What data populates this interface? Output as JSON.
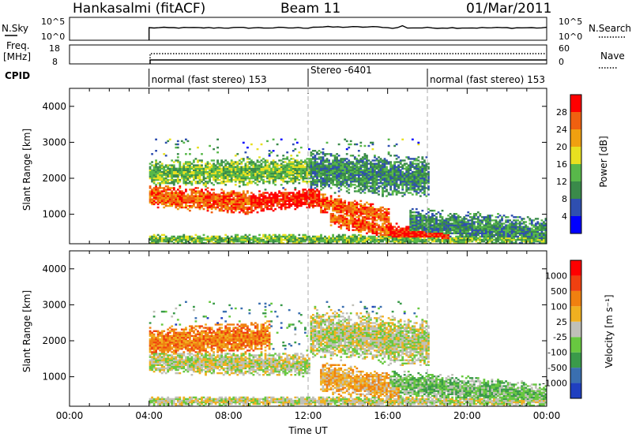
{
  "header": {
    "station": "Hankasalmi (fitACF)",
    "beam": "Beam 11",
    "date": "01/Mar/2011"
  },
  "strip_panels": {
    "nsky_label": "N.Sky",
    "nsearch_label": "N.Search",
    "nsky_ticks": [
      "10^5",
      "10^0"
    ],
    "nsearch_ticks": [
      "10^5",
      "10^0"
    ],
    "freq_label": "Freq.",
    "freq_unit": "[MHz]",
    "freq_ticks": [
      "18",
      "8"
    ],
    "nave_label": "Nave",
    "nave_ticks": [
      "60",
      "0"
    ],
    "cpid_label": "CPID",
    "cpid_segments": [
      {
        "start_hour": 4,
        "end_hour": 12,
        "label": "normal (fast stereo) 153"
      },
      {
        "start_hour": 12,
        "end_hour": 18,
        "label": "Stereo -6401"
      },
      {
        "start_hour": 18,
        "end_hour": 24,
        "label": "normal (fast stereo) 153"
      }
    ]
  },
  "chart_data": [
    {
      "type": "heatmap",
      "name": "power",
      "ylabel": "Slant Range [km]",
      "xlabel": "Time UT",
      "xlim": [
        0,
        24
      ],
      "ylim": [
        180,
        4500
      ],
      "yticks": [
        "1000",
        "2000",
        "3000",
        "4000"
      ],
      "colorbar": {
        "label": "Power [dB]",
        "ticks": [
          "4",
          "8",
          "12",
          "16",
          "20",
          "24",
          "28"
        ],
        "colors": [
          "#0000ff",
          "#2f4fb0",
          "#3a8a4a",
          "#58b84a",
          "#e8e020",
          "#f0a010",
          "#f06010",
          "#ff0000"
        ]
      },
      "data_start_hour": 4,
      "bands": [
        {
          "start_hour": 4.0,
          "end_hour": 9.0,
          "range_start": 1500,
          "range_end": 1300,
          "width": 350,
          "level": 6
        },
        {
          "start_hour": 9.0,
          "end_hour": 12.5,
          "range_start": 1300,
          "range_end": 1450,
          "width": 300,
          "level": 7
        },
        {
          "start_hour": 12.5,
          "end_hour": 16.0,
          "range_start": 1300,
          "range_end": 900,
          "width": 300,
          "level": 6
        },
        {
          "start_hour": 13.0,
          "end_hour": 16.0,
          "range_start": 900,
          "range_end": 500,
          "width": 250,
          "level": 6
        },
        {
          "start_hour": 16.0,
          "end_hour": 19.0,
          "range_start": 500,
          "range_end": 350,
          "width": 250,
          "level": 7
        },
        {
          "start_hour": 4.0,
          "end_hour": 12.0,
          "range_start": 2100,
          "range_end": 2200,
          "width": 400,
          "level": 3
        },
        {
          "start_hour": 12.0,
          "end_hour": 18.0,
          "range_start": 2200,
          "range_end": 2000,
          "width": 600,
          "level": 2
        },
        {
          "start_hour": 17.0,
          "end_hour": 24.0,
          "range_start": 700,
          "range_end": 400,
          "width": 500,
          "level": 2
        },
        {
          "start_hour": 4.0,
          "end_hour": 24.0,
          "range_start": 280,
          "range_end": 280,
          "width": 150,
          "level": 3
        }
      ]
    },
    {
      "type": "heatmap",
      "name": "velocity",
      "ylabel": "Slant Range [km]",
      "xlabel": "Time UT",
      "xlim": [
        0,
        24
      ],
      "ylim": [
        180,
        4500
      ],
      "yticks": [
        "1000",
        "2000",
        "3000",
        "4000"
      ],
      "xticks": [
        "00:00",
        "04:00",
        "08:00",
        "12:00",
        "16:00",
        "20:00",
        "00:00"
      ],
      "colorbar": {
        "label": "Velocity [m s⁻¹]",
        "ticks": [
          "1000",
          "500",
          "100",
          "25",
          "-25",
          "-100",
          "-500",
          "-1000"
        ],
        "colors": [
          "#2040c0",
          "#3a6fb0",
          "#3a9a4a",
          "#68c840",
          "#c0c0b8",
          "#f0b020",
          "#f08010",
          "#f04010",
          "#ff0000"
        ]
      },
      "bands": [
        {
          "start_hour": 4.0,
          "end_hour": 12.0,
          "range_start": 1400,
          "range_end": 1300,
          "width": 350,
          "level": 4
        },
        {
          "start_hour": 4.0,
          "end_hour": 10.0,
          "range_start": 1900,
          "range_end": 2100,
          "width": 450,
          "level": 6
        },
        {
          "start_hour": 12.0,
          "end_hour": 18.0,
          "range_start": 2200,
          "range_end": 1900,
          "width": 700,
          "level": 4
        },
        {
          "start_hour": 12.5,
          "end_hour": 16.5,
          "range_start": 1000,
          "range_end": 600,
          "width": 450,
          "level": 5
        },
        {
          "start_hour": 16.0,
          "end_hour": 24.0,
          "range_start": 800,
          "range_end": 400,
          "width": 400,
          "level": 3
        },
        {
          "start_hour": 4.0,
          "end_hour": 24.0,
          "range_start": 300,
          "range_end": 300,
          "width": 150,
          "level": 4
        }
      ]
    }
  ]
}
